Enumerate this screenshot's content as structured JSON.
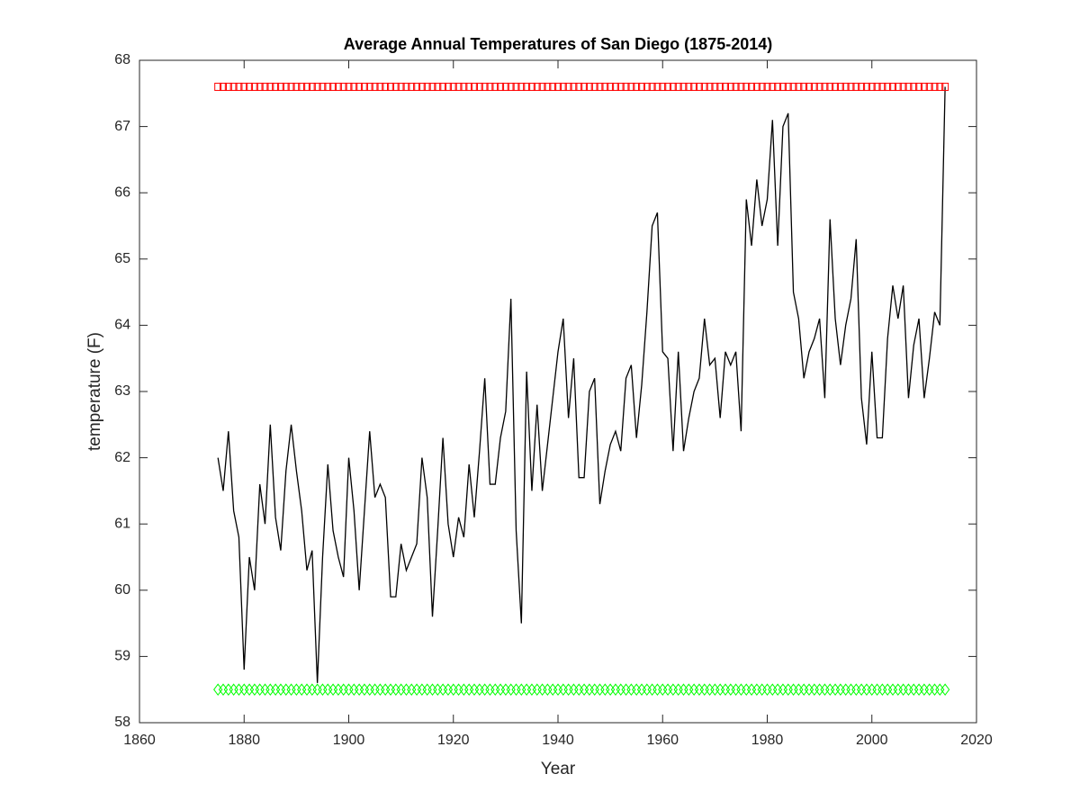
{
  "chart_data": {
    "type": "line",
    "title": "Average Annual Temperatures of San Diego (1875-2014)",
    "x_label": "Year",
    "y_label": "temperature (F)",
    "x": [
      1875,
      1876,
      1877,
      1878,
      1879,
      1880,
      1881,
      1882,
      1883,
      1884,
      1885,
      1886,
      1887,
      1888,
      1889,
      1890,
      1891,
      1892,
      1893,
      1894,
      1895,
      1896,
      1897,
      1898,
      1899,
      1900,
      1901,
      1902,
      1903,
      1904,
      1905,
      1906,
      1907,
      1908,
      1909,
      1910,
      1911,
      1912,
      1913,
      1914,
      1915,
      1916,
      1917,
      1918,
      1919,
      1920,
      1921,
      1922,
      1923,
      1924,
      1925,
      1926,
      1927,
      1928,
      1929,
      1930,
      1931,
      1932,
      1933,
      1934,
      1935,
      1936,
      1937,
      1938,
      1939,
      1940,
      1941,
      1942,
      1943,
      1944,
      1945,
      1946,
      1947,
      1948,
      1949,
      1950,
      1951,
      1952,
      1953,
      1954,
      1955,
      1956,
      1957,
      1958,
      1959,
      1960,
      1961,
      1962,
      1963,
      1964,
      1965,
      1966,
      1967,
      1968,
      1969,
      1970,
      1971,
      1972,
      1973,
      1974,
      1975,
      1976,
      1977,
      1978,
      1979,
      1980,
      1981,
      1982,
      1983,
      1984,
      1985,
      1986,
      1987,
      1988,
      1989,
      1990,
      1991,
      1992,
      1993,
      1994,
      1995,
      1996,
      1997,
      1998,
      1999,
      2000,
      2001,
      2002,
      2003,
      2004,
      2005,
      2006,
      2007,
      2008,
      2009,
      2010,
      2011,
      2012,
      2013,
      2014
    ],
    "series": [
      {
        "color": "#000000",
        "marker": "none",
        "values": [
          62.0,
          61.5,
          62.4,
          61.2,
          60.8,
          58.8,
          60.5,
          60.0,
          61.6,
          61.0,
          62.5,
          61.1,
          60.6,
          61.8,
          62.5,
          61.8,
          61.2,
          60.3,
          60.6,
          58.6,
          60.5,
          61.9,
          60.9,
          60.5,
          60.2,
          62.0,
          61.2,
          60.0,
          61.2,
          62.4,
          61.4,
          61.6,
          61.4,
          59.9,
          59.9,
          60.7,
          60.3,
          60.5,
          60.7,
          62.0,
          61.4,
          59.6,
          60.9,
          62.3,
          61.0,
          60.5,
          61.1,
          60.8,
          61.9,
          61.1,
          62.1,
          63.2,
          61.6,
          61.6,
          62.3,
          62.7,
          64.4,
          60.9,
          59.5,
          63.3,
          61.5,
          62.8,
          61.5,
          62.2,
          62.9,
          63.6,
          64.1,
          62.6,
          63.5,
          61.7,
          61.7,
          63.0,
          63.2,
          61.3,
          61.8,
          62.2,
          62.4,
          62.1,
          63.2,
          63.4,
          62.3,
          63.1,
          64.2,
          65.5,
          65.7,
          63.6,
          63.5,
          62.1,
          63.6,
          62.1,
          62.6,
          63.0,
          63.2,
          64.1,
          63.4,
          63.5,
          62.6,
          63.6,
          63.4,
          63.6,
          62.4,
          65.9,
          65.2,
          66.2,
          65.5,
          65.9,
          67.1,
          65.2,
          67.0,
          67.2,
          64.5,
          64.1,
          63.2,
          63.6,
          63.8,
          64.1,
          62.9,
          65.6,
          64.1,
          63.4,
          64.0,
          64.4,
          65.3,
          62.9,
          62.2,
          63.6,
          62.3,
          62.3,
          63.8,
          64.6,
          64.1,
          64.6,
          62.9,
          63.7,
          64.1,
          62.9,
          63.5,
          64.2,
          64.0,
          67.6
        ]
      },
      {
        "color": "#ff0000",
        "marker": "square",
        "values": [
          67.6,
          67.6,
          67.6,
          67.6,
          67.6,
          67.6,
          67.6,
          67.6,
          67.6,
          67.6,
          67.6,
          67.6,
          67.6,
          67.6,
          67.6,
          67.6,
          67.6,
          67.6,
          67.6,
          67.6,
          67.6,
          67.6,
          67.6,
          67.6,
          67.6,
          67.6,
          67.6,
          67.6,
          67.6,
          67.6,
          67.6,
          67.6,
          67.6,
          67.6,
          67.6,
          67.6,
          67.6,
          67.6,
          67.6,
          67.6,
          67.6,
          67.6,
          67.6,
          67.6,
          67.6,
          67.6,
          67.6,
          67.6,
          67.6,
          67.6,
          67.6,
          67.6,
          67.6,
          67.6,
          67.6,
          67.6,
          67.6,
          67.6,
          67.6,
          67.6,
          67.6,
          67.6,
          67.6,
          67.6,
          67.6,
          67.6,
          67.6,
          67.6,
          67.6,
          67.6,
          67.6,
          67.6,
          67.6,
          67.6,
          67.6,
          67.6,
          67.6,
          67.6,
          67.6,
          67.6,
          67.6,
          67.6,
          67.6,
          67.6,
          67.6,
          67.6,
          67.6,
          67.6,
          67.6,
          67.6,
          67.6,
          67.6,
          67.6,
          67.6,
          67.6,
          67.6,
          67.6,
          67.6,
          67.6,
          67.6,
          67.6,
          67.6,
          67.6,
          67.6,
          67.6,
          67.6,
          67.6,
          67.6,
          67.6,
          67.6,
          67.6,
          67.6,
          67.6,
          67.6,
          67.6,
          67.6,
          67.6,
          67.6,
          67.6,
          67.6,
          67.6,
          67.6,
          67.6,
          67.6,
          67.6,
          67.6,
          67.6,
          67.6,
          67.6,
          67.6,
          67.6,
          67.6,
          67.6,
          67.6,
          67.6,
          67.6,
          67.6,
          67.6,
          67.6,
          67.6
        ]
      },
      {
        "color": "#00ff00",
        "marker": "diamond",
        "values": [
          58.5,
          58.5,
          58.5,
          58.5,
          58.5,
          58.5,
          58.5,
          58.5,
          58.5,
          58.5,
          58.5,
          58.5,
          58.5,
          58.5,
          58.5,
          58.5,
          58.5,
          58.5,
          58.5,
          58.5,
          58.5,
          58.5,
          58.5,
          58.5,
          58.5,
          58.5,
          58.5,
          58.5,
          58.5,
          58.5,
          58.5,
          58.5,
          58.5,
          58.5,
          58.5,
          58.5,
          58.5,
          58.5,
          58.5,
          58.5,
          58.5,
          58.5,
          58.5,
          58.5,
          58.5,
          58.5,
          58.5,
          58.5,
          58.5,
          58.5,
          58.5,
          58.5,
          58.5,
          58.5,
          58.5,
          58.5,
          58.5,
          58.5,
          58.5,
          58.5,
          58.5,
          58.5,
          58.5,
          58.5,
          58.5,
          58.5,
          58.5,
          58.5,
          58.5,
          58.5,
          58.5,
          58.5,
          58.5,
          58.5,
          58.5,
          58.5,
          58.5,
          58.5,
          58.5,
          58.5,
          58.5,
          58.5,
          58.5,
          58.5,
          58.5,
          58.5,
          58.5,
          58.5,
          58.5,
          58.5,
          58.5,
          58.5,
          58.5,
          58.5,
          58.5,
          58.5,
          58.5,
          58.5,
          58.5,
          58.5,
          58.5,
          58.5,
          58.5,
          58.5,
          58.5,
          58.5,
          58.5,
          58.5,
          58.5,
          58.5,
          58.5,
          58.5,
          58.5,
          58.5,
          58.5,
          58.5,
          58.5,
          58.5,
          58.5,
          58.5,
          58.5,
          58.5,
          58.5,
          58.5,
          58.5,
          58.5,
          58.5,
          58.5,
          58.5,
          58.5,
          58.5,
          58.5,
          58.5,
          58.5,
          58.5,
          58.5,
          58.5,
          58.5,
          58.5,
          58.5
        ]
      }
    ],
    "xlim": [
      1860,
      2020
    ],
    "xticks": [
      1860,
      1880,
      1900,
      1920,
      1940,
      1960,
      1980,
      2000,
      2020
    ],
    "ylim": [
      58,
      68
    ],
    "yticks": [
      58,
      59,
      60,
      61,
      62,
      63,
      64,
      65,
      66,
      67,
      68
    ],
    "grid": false
  }
}
